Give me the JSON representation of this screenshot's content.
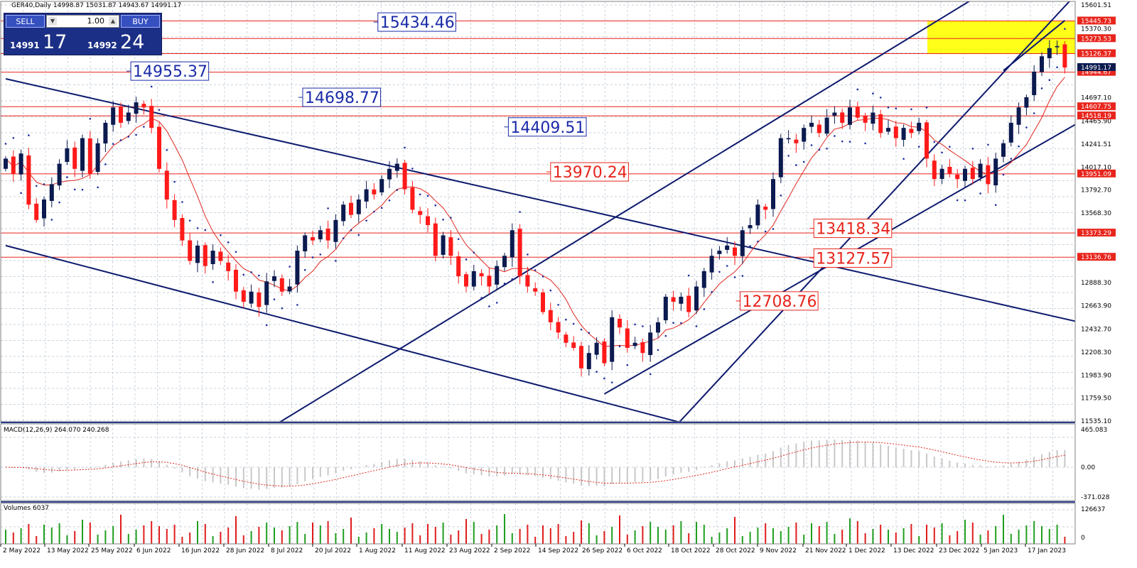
{
  "header": {
    "title": "GER40,Daily  14998.87  15031.87  14943.67  14991.17"
  },
  "trade_panel": {
    "sell_label": "SELL",
    "buy_label": "BUY",
    "lot": "1.00",
    "sell_price_prefix": "14991",
    "sell_price_big": "17",
    "buy_price_prefix": "14992",
    "buy_price_big": "24"
  },
  "colors": {
    "bull": "#0b1a4f",
    "bear": "#ff1a1a",
    "trendline": "#0d1a6e",
    "hline": "#e8251c",
    "sar": "#1f2d9e",
    "ma": "#e0271e",
    "macd_hist": "#c8c8c8",
    "macd_signal": "#e0271e",
    "vol_up": "#1f9e1f",
    "vol_down": "#e01c1c",
    "zone": "#ffff00",
    "grid": "#b7c3d0"
  },
  "chart_data": {
    "type": "candlestick",
    "title": "GER40,Daily",
    "ohlc_last": {
      "open": 14998.87,
      "high": 15031.87,
      "low": 14943.67,
      "close": 14991.17
    },
    "ylim": [
      11535.1,
      15601.51
    ],
    "y_ticks": [
      15601.51,
      15370.3,
      14697.1,
      14465.9,
      14241.51,
      14017.1,
      13792.7,
      13568.3,
      12888.3,
      12663.9,
      12432.7,
      12208.3,
      11983.9,
      11759.5,
      11535.1
    ],
    "x_ticks": [
      "2 May 2022",
      "13 May 2022",
      "25 May 2022",
      "6 Jun 2022",
      "16 Jun 2022",
      "28 Jun 2022",
      "8 Jul 2022",
      "20 Jul 2022",
      "1 Aug 2022",
      "11 Aug 2022",
      "23 Aug 2022",
      "2 Sep 2022",
      "14 Sep 2022",
      "26 Sep 2022",
      "6 Oct 2022",
      "18 Oct 2022",
      "28 Oct 2022",
      "9 Nov 2022",
      "21 Nov 2022",
      "1 Dec 2022",
      "13 Dec 2022",
      "23 Dec 2022",
      "5 Jan 2023",
      "17 Jan 2023"
    ],
    "closes": [
      14100,
      13950,
      14150,
      13650,
      13500,
      13700,
      13850,
      14050,
      14200,
      14000,
      14300,
      13950,
      14250,
      14450,
      14600,
      14450,
      14550,
      14650,
      14600,
      14400,
      14000,
      13700,
      13500,
      13300,
      13100,
      13250,
      13050,
      13200,
      13100,
      13000,
      12800,
      12700,
      12800,
      12650,
      12900,
      12950,
      12800,
      12850,
      13200,
      13350,
      13300,
      13400,
      13300,
      13500,
      13650,
      13550,
      13700,
      13800,
      13750,
      13900,
      14000,
      14050,
      13800,
      13600,
      13550,
      13450,
      13150,
      13350,
      13150,
      12950,
      12850,
      13000,
      12950,
      12850,
      13050,
      13150,
      13400,
      12950,
      12850,
      12800,
      12600,
      12500,
      12400,
      12300,
      12250,
      12050,
      12200,
      12300,
      12100,
      12550,
      12450,
      12250,
      12300,
      12200,
      12400,
      12500,
      12750,
      12700,
      12750,
      12600,
      12850,
      13000,
      13150,
      13200,
      13250,
      13150,
      13400,
      13450,
      13650,
      13600,
      13900,
      14300,
      14300,
      14250,
      14400,
      14450,
      14350,
      14500,
      14550,
      14450,
      14600,
      14500,
      14450,
      14550,
      14350,
      14400,
      14300,
      14400,
      14350,
      14450,
      14100,
      13900,
      14000,
      13950,
      13900,
      14000,
      13900,
      14050,
      13850,
      14100,
      14250,
      14450,
      14600,
      14700,
      14950,
      15100,
      15180,
      15200,
      14990
    ],
    "horizontal_levels": [
      15445.73,
      15273.53,
      15126.37,
      14944.67,
      14607.75,
      14518.19,
      13951.09,
      13373.29,
      13136.76
    ],
    "annotations": [
      {
        "text": "15434.46",
        "value": 15434.46,
        "color": "blue"
      },
      {
        "text": "14955.37",
        "value": 14955.37,
        "color": "blue"
      },
      {
        "text": "14698.77",
        "value": 14698.77,
        "color": "blue"
      },
      {
        "text": "14409.51",
        "value": 14409.51,
        "color": "blue"
      },
      {
        "text": "13970.24",
        "value": 13970.24,
        "color": "red"
      },
      {
        "text": "13418.34",
        "value": 13418.34,
        "color": "red"
      },
      {
        "text": "13127.57",
        "value": 13127.57,
        "color": "red"
      },
      {
        "text": "12708.76",
        "value": 12708.76,
        "color": "red"
      }
    ],
    "axis_labels_red": [
      "15445.73",
      "15273.53",
      "15126.37",
      "14944.67",
      "14607.75",
      "14518.19",
      "13951.09",
      "13373.29",
      "13136.76"
    ],
    "axis_labels_extra": [
      "14991.17"
    ],
    "supply_zone": {
      "from": 15126.37,
      "to": 15445.73
    }
  },
  "macd": {
    "label": "MACD(12,26,9) 264.070 240.268",
    "ticks": [
      "465.083",
      "0.00",
      "-371.028"
    ],
    "ylim": [
      -371.028,
      465.083
    ]
  },
  "volumes": {
    "label": "Volumes 6037",
    "ticks": [
      "126637",
      "0"
    ]
  }
}
